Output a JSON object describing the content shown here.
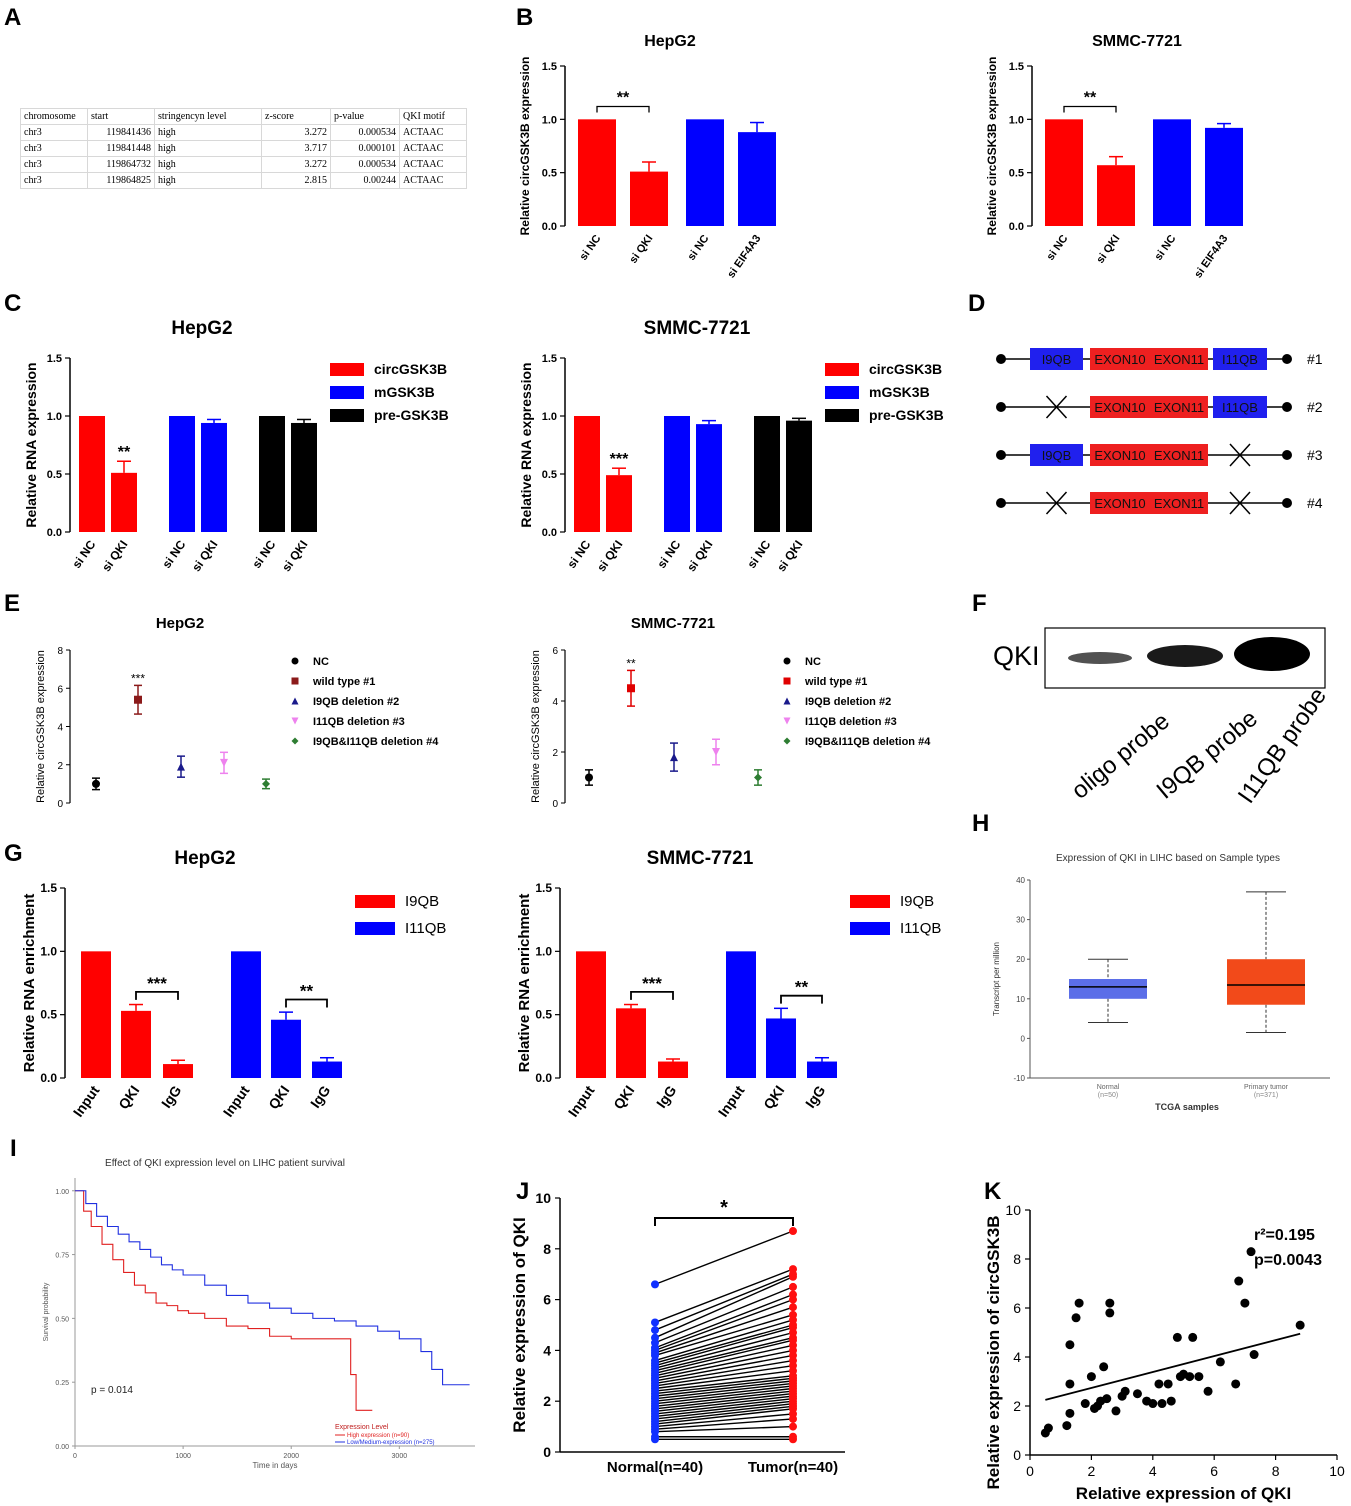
{
  "labels": {
    "A": "A",
    "B": "B",
    "C": "C",
    "D": "D",
    "E": "E",
    "F": "F",
    "G": "G",
    "H": "H",
    "I": "I",
    "J": "J",
    "K": "K"
  },
  "panelA": {
    "headers": [
      "chromosome",
      "start",
      "stringencyn level",
      "z-score",
      "p-value",
      "QKI motif"
    ],
    "rows": [
      [
        "chr3",
        "119841436",
        "high",
        "3.272",
        "0.000534",
        "ACTAAC"
      ],
      [
        "chr3",
        "119841448",
        "high",
        "3.717",
        "0.000101",
        "ACTAAC"
      ],
      [
        "chr3",
        "119864732",
        "high",
        "3.272",
        "0.000534",
        "ACTAAC"
      ],
      [
        "chr3",
        "119864825",
        "high",
        "2.815",
        "0.00244",
        "ACTAAC"
      ]
    ]
  },
  "panelD": {
    "constructs": [
      {
        "id": "#1",
        "segments": [
          "I9QB",
          "EXON10",
          "EXON11",
          "I11QB"
        ]
      },
      {
        "id": "#2",
        "segments": [
          "X",
          "EXON10",
          "EXON11",
          "I11QB"
        ]
      },
      {
        "id": "#3",
        "segments": [
          "I9QB",
          "EXON10",
          "EXON11",
          "X"
        ]
      },
      {
        "id": "#4",
        "segments": [
          "X",
          "EXON10",
          "EXON11",
          "X"
        ]
      }
    ]
  },
  "panelF": {
    "protein": "QKI",
    "lanes": [
      "oligo probe",
      "I9QB probe",
      "I11QB probe"
    ]
  },
  "chart_data": [
    {
      "panel": "B",
      "type": "bar",
      "title": "HepG2",
      "ylabel": "Relative circGSK3B expression",
      "ylim": [
        0,
        1.5
      ],
      "yticks": [
        "0.0",
        "0.5",
        "1.0",
        "1.5"
      ],
      "categories": [
        "si NC",
        "si QKI",
        "si NC",
        "si EIF4A3"
      ],
      "values": [
        1.0,
        0.51,
        1.0,
        0.88
      ],
      "errors": [
        0,
        0.09,
        0,
        0.09
      ],
      "colors": [
        "#ff0000",
        "#ff0000",
        "#0000ff",
        "#0000ff"
      ],
      "sig": "**"
    },
    {
      "panel": "B",
      "type": "bar",
      "title": "SMMC-7721",
      "ylabel": "Relative circGSK3B expression",
      "ylim": [
        0,
        1.5
      ],
      "yticks": [
        "0.0",
        "0.5",
        "1.0",
        "1.5"
      ],
      "categories": [
        "si NC",
        "si QKI",
        "si NC",
        "si EIF4A3"
      ],
      "values": [
        1.0,
        0.57,
        1.0,
        0.92
      ],
      "errors": [
        0,
        0.08,
        0,
        0.04
      ],
      "colors": [
        "#ff0000",
        "#ff0000",
        "#0000ff",
        "#0000ff"
      ],
      "sig": "**"
    },
    {
      "panel": "C",
      "type": "bar",
      "title": "HepG2",
      "ylabel": "Relative RNA expression",
      "ylim": [
        0,
        1.5
      ],
      "yticks": [
        "0.0",
        "0.5",
        "1.0",
        "1.5"
      ],
      "categories": [
        "si NC",
        "si QKI",
        "si NC",
        "si QKI",
        "si NC",
        "si QKI"
      ],
      "values": [
        1.0,
        0.51,
        1.0,
        0.94,
        1.0,
        0.94
      ],
      "errors": [
        0,
        0.1,
        0,
        0.03,
        0,
        0.03
      ],
      "colors": [
        "#ff0000",
        "#ff0000",
        "#0000ff",
        "#0000ff",
        "#000000",
        "#000000"
      ],
      "sig": "**",
      "legend": [
        {
          "name": "circGSK3B",
          "color": "#ff0000"
        },
        {
          "name": "mGSK3B",
          "color": "#0000ff"
        },
        {
          "name": "pre-GSK3B",
          "color": "#000000"
        }
      ]
    },
    {
      "panel": "C",
      "type": "bar",
      "title": "SMMC-7721",
      "ylabel": "Relative RNA expression",
      "ylim": [
        0,
        1.5
      ],
      "yticks": [
        "0.0",
        "0.5",
        "1.0",
        "1.5"
      ],
      "categories": [
        "si NC",
        "si QKI",
        "si NC",
        "si QKI",
        "si NC",
        "si QKI"
      ],
      "values": [
        1.0,
        0.49,
        1.0,
        0.93,
        1.0,
        0.96
      ],
      "errors": [
        0,
        0.06,
        0,
        0.03,
        0,
        0.02
      ],
      "colors": [
        "#ff0000",
        "#ff0000",
        "#0000ff",
        "#0000ff",
        "#000000",
        "#000000"
      ],
      "sig": "***",
      "legend": [
        {
          "name": "circGSK3B",
          "color": "#ff0000"
        },
        {
          "name": "mGSK3B",
          "color": "#0000ff"
        },
        {
          "name": "pre-GSK3B",
          "color": "#000000"
        }
      ]
    },
    {
      "panel": "E",
      "type": "scatter",
      "title": "HepG2",
      "ylabel": "Relative circGSK3B expression",
      "ylim": [
        0,
        8
      ],
      "yticks": [
        "0",
        "2",
        "4",
        "6",
        "8"
      ],
      "series": [
        {
          "name": "NC",
          "value": 1.0,
          "err": 0.3,
          "color": "#000000",
          "marker": "circle"
        },
        {
          "name": "wild type #1",
          "value": 5.4,
          "err": 0.75,
          "color": "#8b1a1a",
          "marker": "square",
          "sig": "***"
        },
        {
          "name": "I9QB deletion #2",
          "value": 1.9,
          "err": 0.55,
          "color": "#1a1a8b",
          "marker": "triangle"
        },
        {
          "name": "I11QB deletion #3",
          "value": 2.1,
          "err": 0.55,
          "color": "#ee82ee",
          "marker": "triangle-down"
        },
        {
          "name": "I9QB&I11QB deletion #4",
          "value": 1.0,
          "err": 0.25,
          "color": "#2e7d32",
          "marker": "diamond"
        }
      ]
    },
    {
      "panel": "E",
      "type": "scatter",
      "title": "SMMC-7721",
      "ylabel": "Relative circGSK3B expression",
      "ylim": [
        0,
        6
      ],
      "yticks": [
        "0",
        "2",
        "4",
        "6"
      ],
      "series": [
        {
          "name": "NC",
          "value": 1.0,
          "err": 0.3,
          "color": "#000000",
          "marker": "circle"
        },
        {
          "name": "wild type #1",
          "value": 4.5,
          "err": 0.7,
          "color": "#e00000",
          "marker": "square",
          "sig": "**"
        },
        {
          "name": "I9QB deletion #2",
          "value": 1.8,
          "err": 0.55,
          "color": "#1a1a8b",
          "marker": "triangle"
        },
        {
          "name": "I11QB deletion #3",
          "value": 2.0,
          "err": 0.5,
          "color": "#ee82ee",
          "marker": "triangle-down"
        },
        {
          "name": "I9QB&I11QB deletion #4",
          "value": 1.0,
          "err": 0.3,
          "color": "#2e7d32",
          "marker": "diamond"
        }
      ]
    },
    {
      "panel": "G",
      "type": "bar",
      "title": "HepG2",
      "ylabel": "Relative RNA enrichment",
      "ylim": [
        0,
        1.5
      ],
      "yticks": [
        "0.0",
        "0.5",
        "1.0",
        "1.5"
      ],
      "categories": [
        "Input",
        "QKI",
        "IgG",
        "Input",
        "QKI",
        "IgG"
      ],
      "values": [
        1.0,
        0.53,
        0.11,
        1.0,
        0.46,
        0.13
      ],
      "errors": [
        0,
        0.05,
        0.03,
        0,
        0.06,
        0.03
      ],
      "colors": [
        "#ff0000",
        "#ff0000",
        "#ff0000",
        "#0000ff",
        "#0000ff",
        "#0000ff"
      ],
      "sigs": [
        "***",
        "**"
      ],
      "legend": [
        {
          "name": "I9QB",
          "color": "#ff0000"
        },
        {
          "name": "I11QB",
          "color": "#0000ff"
        }
      ]
    },
    {
      "panel": "G",
      "type": "bar",
      "title": "SMMC-7721",
      "ylabel": "Relative RNA enrichment",
      "ylim": [
        0,
        1.5
      ],
      "yticks": [
        "0.0",
        "0.5",
        "1.0",
        "1.5"
      ],
      "categories": [
        "Input",
        "QKI",
        "IgG",
        "Input",
        "QKI",
        "IgG"
      ],
      "values": [
        1.0,
        0.55,
        0.13,
        1.0,
        0.47,
        0.13
      ],
      "errors": [
        0,
        0.03,
        0.02,
        0,
        0.08,
        0.03
      ],
      "colors": [
        "#ff0000",
        "#ff0000",
        "#ff0000",
        "#0000ff",
        "#0000ff",
        "#0000ff"
      ],
      "sigs": [
        "***",
        "**"
      ],
      "legend": [
        {
          "name": "I9QB",
          "color": "#ff0000"
        },
        {
          "name": "I11QB",
          "color": "#0000ff"
        }
      ]
    },
    {
      "panel": "H",
      "type": "box",
      "title": "Expression of QKI in LIHC based on Sample types",
      "ylabel": "Transcript per million",
      "xlabel": "TCGA samples",
      "ylim": [
        -10,
        40
      ],
      "yticks": [
        "-10",
        "0",
        "10",
        "20",
        "30",
        "40"
      ],
      "boxes": [
        {
          "name": "Normal",
          "n": "(n=50)",
          "min": 4,
          "q1": 10,
          "median": 13,
          "q3": 15,
          "max": 20,
          "color": "#5b6ee8"
        },
        {
          "name": "Primary tumor",
          "n": "(n=371)",
          "min": 1.5,
          "q1": 8.5,
          "median": 13.5,
          "q3": 20,
          "max": 37,
          "color": "#f24a1a"
        }
      ]
    },
    {
      "panel": "I",
      "type": "line",
      "title": "Effect of QKI expression level on LIHC patient survival",
      "ylabel": "Survival probability",
      "xlabel": "Time in days",
      "xlim": [
        0,
        3700
      ],
      "ylim": [
        0,
        1.05
      ],
      "xticks": [
        "0",
        "1000",
        "2000",
        "3000"
      ],
      "yticks": [
        "0.00",
        "0.25",
        "0.50",
        "0.75",
        "1.00"
      ],
      "pvalue": "p = 0.014",
      "legend_title": "Expression Level",
      "series": [
        {
          "name": "High expression (n=90)",
          "color": "#e02020",
          "x": [
            0,
            80,
            150,
            250,
            350,
            450,
            550,
            650,
            750,
            850,
            950,
            1050,
            1200,
            1400,
            1600,
            1800,
            2000,
            2200,
            2500,
            2550,
            2600,
            2750
          ],
          "y": [
            1.0,
            0.92,
            0.86,
            0.79,
            0.73,
            0.68,
            0.63,
            0.6,
            0.56,
            0.55,
            0.53,
            0.52,
            0.5,
            0.47,
            0.46,
            0.43,
            0.42,
            0.42,
            0.42,
            0.28,
            0.14,
            0.14
          ]
        },
        {
          "name": "Low/Medium-expression (n=275)",
          "color": "#2030e0",
          "x": [
            0,
            100,
            200,
            300,
            400,
            500,
            600,
            700,
            800,
            900,
            1000,
            1200,
            1400,
            1600,
            1800,
            2000,
            2200,
            2400,
            2600,
            2800,
            3000,
            3200,
            3300,
            3400,
            3650
          ],
          "y": [
            1.0,
            0.95,
            0.9,
            0.86,
            0.83,
            0.8,
            0.77,
            0.74,
            0.71,
            0.69,
            0.67,
            0.63,
            0.59,
            0.56,
            0.54,
            0.52,
            0.5,
            0.49,
            0.47,
            0.45,
            0.42,
            0.37,
            0.3,
            0.24,
            0.24
          ]
        }
      ]
    },
    {
      "panel": "J",
      "type": "paired",
      "ylabel": "Relative expression of QKI",
      "ylim": [
        0,
        10
      ],
      "yticks": [
        "0",
        "2",
        "4",
        "6",
        "8",
        "10"
      ],
      "categories": [
        "Normal(n=40)",
        "Tumor(n=40)"
      ],
      "sig": "*",
      "normal": [
        6.6,
        5.1,
        4.8,
        4.5,
        4.3,
        4.1,
        4.0,
        3.9,
        3.8,
        3.6,
        3.5,
        3.4,
        3.3,
        3.2,
        3.1,
        3.0,
        2.9,
        2.8,
        2.7,
        2.6,
        2.5,
        2.4,
        2.3,
        2.2,
        2.1,
        2.0,
        1.9,
        1.8,
        1.7,
        1.6,
        1.5,
        1.4,
        1.3,
        1.2,
        1.1,
        1.0,
        0.9,
        0.8,
        0.6,
        0.5
      ],
      "tumor": [
        8.7,
        7.2,
        7.0,
        6.9,
        6.5,
        6.2,
        6.0,
        5.7,
        5.4,
        5.2,
        5.0,
        4.9,
        4.7,
        4.5,
        4.4,
        4.2,
        4.0,
        3.8,
        3.6,
        3.4,
        3.2,
        3.0,
        2.9,
        2.8,
        2.7,
        2.6,
        2.5,
        2.4,
        2.3,
        2.2,
        2.1,
        2.0,
        1.9,
        1.8,
        1.7,
        1.5,
        1.3,
        1.0,
        0.6,
        0.5
      ]
    },
    {
      "panel": "K",
      "type": "scatter",
      "xlabel": "Relative expression of QKI",
      "ylabel": "Relative expression of circGSK3B",
      "xlim": [
        0,
        10
      ],
      "ylim": [
        0,
        10
      ],
      "xticks": [
        "0",
        "2",
        "4",
        "6",
        "8",
        "10"
      ],
      "yticks": [
        "0",
        "2",
        "4",
        "6",
        "8",
        "10"
      ],
      "r2": "r²=0.195",
      "pvalue": "p=0.0043",
      "x": [
        0.5,
        0.6,
        1.2,
        1.3,
        1.3,
        1.5,
        1.3,
        1.6,
        1.8,
        2.0,
        2.1,
        2.2,
        2.3,
        2.4,
        2.5,
        2.6,
        2.6,
        2.8,
        3.0,
        3.1,
        3.5,
        3.8,
        4.0,
        4.2,
        4.3,
        4.5,
        4.6,
        4.8,
        4.9,
        5.0,
        5.2,
        5.3,
        5.5,
        5.8,
        6.2,
        6.7,
        6.8,
        7.0,
        7.2,
        7.3,
        8.8
      ],
      "y": [
        0.9,
        1.1,
        1.2,
        1.7,
        4.5,
        5.6,
        2.9,
        6.2,
        2.1,
        3.2,
        1.9,
        2.0,
        2.2,
        3.6,
        2.3,
        6.2,
        5.8,
        1.8,
        2.4,
        2.6,
        2.5,
        2.2,
        2.1,
        2.9,
        2.1,
        2.9,
        2.2,
        4.8,
        3.2,
        3.3,
        3.2,
        4.8,
        3.2,
        2.6,
        3.8,
        2.9,
        7.1,
        6.2,
        8.3,
        4.1,
        5.3
      ],
      "fit": {
        "x": [
          0.5,
          8.8
        ],
        "y": [
          2.25,
          4.95
        ]
      }
    }
  ]
}
